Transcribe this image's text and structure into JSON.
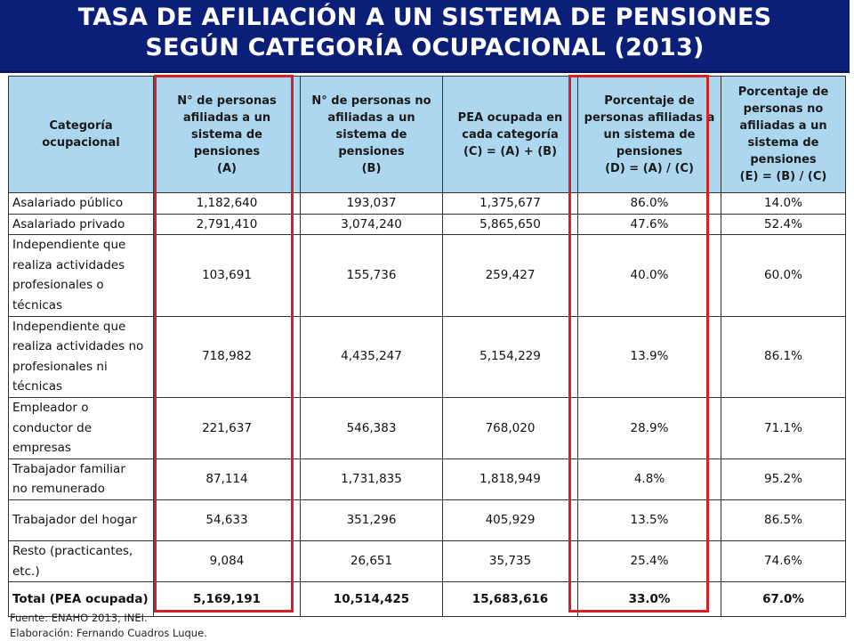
{
  "title": {
    "line1": "TASA DE AFILIACIÓN A UN SISTEMA DE PENSIONES",
    "line2": "SEGÚN CATEGORÍA OCUPACIONAL (2013)"
  },
  "table": {
    "headers": [
      [
        "Categoría",
        "ocupacional"
      ],
      [
        "N° de personas",
        "afiliadas a un",
        "sistema de",
        "pensiones",
        "(A)"
      ],
      [
        "N° de personas no",
        "afiliadas a un",
        "sistema de",
        "pensiones",
        "(B)"
      ],
      [
        "PEA ocupada en",
        "cada categoría",
        "(C) = (A) + (B)"
      ],
      [
        "Porcentaje de",
        "personas afiliadas a",
        "un sistema de",
        "pensiones",
        "(D) = (A) / (C)"
      ],
      [
        "Porcentaje de",
        "personas no",
        "afiliadas a un",
        "sistema de",
        "pensiones",
        "(E) = (B) / (C)"
      ]
    ],
    "rows": [
      {
        "category": [
          "Asalariado público"
        ],
        "a": "1,182,640",
        "b": "193,037",
        "c": "1,375,677",
        "d": "86.0%",
        "e": "14.0%"
      },
      {
        "category": [
          "Asalariado privado"
        ],
        "a": "2,791,410",
        "b": "3,074,240",
        "c": "5,865,650",
        "d": "47.6%",
        "e": "52.4%"
      },
      {
        "category": [
          "Independiente que",
          "realiza actividades",
          "profesionales o",
          "técnicas"
        ],
        "a": "103,691",
        "b": "155,736",
        "c": "259,427",
        "d": "40.0%",
        "e": "60.0%"
      },
      {
        "category": [
          "Independiente que",
          "realiza actividades no",
          "profesionales ni",
          "técnicas"
        ],
        "a": "718,982",
        "b": "4,435,247",
        "c": "5,154,229",
        "d": "13.9%",
        "e": "86.1%"
      },
      {
        "category": [
          "Empleador o",
          "conductor de",
          "empresas"
        ],
        "a": "221,637",
        "b": "546,383",
        "c": "768,020",
        "d": "28.9%",
        "e": "71.1%"
      },
      {
        "category": [
          "Trabajador familiar",
          "no remunerado"
        ],
        "a": "87,114",
        "b": "1,731,835",
        "c": "1,818,949",
        "d": "4.8%",
        "e": "95.2%"
      },
      {
        "category": [
          "Trabajador del hogar"
        ],
        "a": "54,633",
        "b": "351,296",
        "c": "405,929",
        "d": "13.5%",
        "e": "86.5%"
      },
      {
        "category": [
          "Resto (practicantes,",
          "etc.)"
        ],
        "a": "9,084",
        "b": "26,651",
        "c": "35,735",
        "d": "25.4%",
        "e": "74.6%"
      }
    ],
    "total": {
      "category": "Total (PEA ocupada)",
      "a": "5,169,191",
      "b": "10,514,425",
      "c": "15,683,616",
      "d": "33.0%",
      "e": "67.0%"
    }
  },
  "source": {
    "line1": "Fuente: ENAHO 2013, INEI.",
    "line2": "Elaboración: Fernando Cuadros Luque."
  },
  "colors": {
    "title_background": "#0b1f78",
    "header_background": "#add7ef",
    "highlight_border": "#d3232a"
  }
}
